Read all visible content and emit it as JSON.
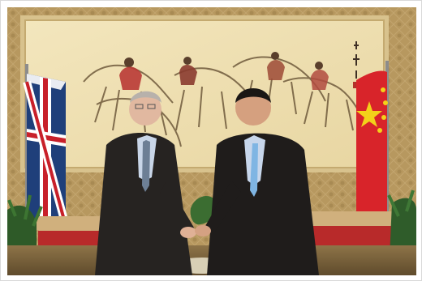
{
  "photo": {
    "subject": "diplomatic-handshake",
    "colors": {
      "wall": "#b89a64",
      "painting_bg": "#efe1b8",
      "painting_frame": "#d9c89a",
      "uk_blue": "#1f3f7a",
      "uk_red": "#c8202a",
      "china_red": "#d8242a",
      "china_star": "#f3d11a",
      "chair_red": "#b82a2a",
      "suit_dark": "#262321"
    }
  }
}
